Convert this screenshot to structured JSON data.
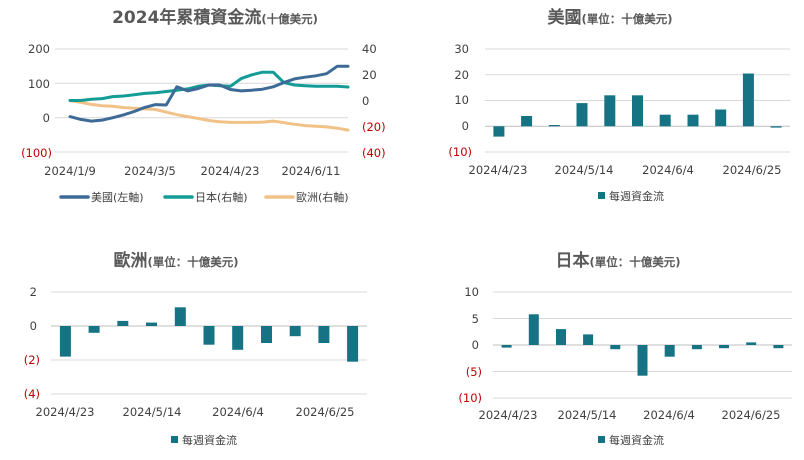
{
  "colors": {
    "us": "#3d6a96",
    "japan": "#139c95",
    "europe": "#f0c287",
    "bar": "#157384",
    "negative_tick": "#c00000",
    "grid": "#d9d9d9"
  },
  "chart_data": [
    {
      "id": "cumulative",
      "type": "line",
      "title": "2024年累積資金流",
      "title_suffix": "(十億美元)",
      "x_tick_labels": [
        "2024/1/9",
        "2024/3/5",
        "2024/4/23",
        "2024/6/11"
      ],
      "left_axis": {
        "ylim": [
          -100,
          200
        ],
        "tick_labels": [
          "200",
          "100",
          "0",
          "(100)"
        ]
      },
      "right_axis": {
        "ylim": [
          -40,
          40
        ],
        "tick_labels": [
          "40",
          "20",
          "0",
          "(20)",
          "(40)"
        ]
      },
      "grid": true,
      "legend_position": "bottom",
      "series": [
        {
          "name": "美國(左軸)",
          "axis": "left",
          "color_key": "us",
          "values": [
            3,
            -5,
            -10,
            -7,
            0,
            8,
            18,
            30,
            38,
            37,
            90,
            78,
            85,
            95,
            95,
            82,
            78,
            80,
            83,
            90,
            102,
            113,
            118,
            122,
            128,
            150,
            150
          ]
        },
        {
          "name": "日本(右軸)",
          "axis": "right",
          "color_key": "japan",
          "values": [
            0,
            0,
            1,
            1.5,
            3,
            3.5,
            4.5,
            5.5,
            6,
            7,
            8,
            9,
            11,
            12,
            11.5,
            11,
            17,
            20,
            22,
            22,
            14,
            12,
            11.5,
            11,
            11,
            11,
            10.5
          ]
        },
        {
          "name": "歐洲(右軸)",
          "axis": "right",
          "color_key": "europe",
          "values": [
            0,
            -1.5,
            -3,
            -4,
            -4.5,
            -5.5,
            -6,
            -6.5,
            -7,
            -9,
            -11,
            -12.5,
            -14,
            -15.5,
            -16.5,
            -17,
            -17,
            -17,
            -16.8,
            -16,
            -17.2,
            -18.5,
            -19.5,
            -20,
            -20.5,
            -21.5,
            -23
          ]
        }
      ]
    },
    {
      "id": "us",
      "type": "bar",
      "title": "美國",
      "title_suffix": "(單位：十億美元)",
      "x_tick_labels": [
        "2024/4/23",
        "2024/5/14",
        "2024/6/4",
        "2024/6/25"
      ],
      "ylim": [
        -10,
        30
      ],
      "tick_labels": [
        "30",
        "20",
        "10",
        "0",
        "(10)"
      ],
      "legend": "每週資金流",
      "values": [
        -4,
        4,
        0.5,
        9,
        12,
        12,
        4.5,
        4.5,
        6.5,
        20.5,
        -0.5
      ]
    },
    {
      "id": "europe",
      "type": "bar",
      "title": "歐洲",
      "title_suffix": "(單位：十億美元)",
      "x_tick_labels": [
        "2024/4/23",
        "2024/5/14",
        "2024/6/4",
        "2024/6/25"
      ],
      "ylim": [
        -4,
        2
      ],
      "tick_labels": [
        "2",
        "0",
        "(2)",
        "(4)"
      ],
      "legend": "每週資金流",
      "values": [
        -1.8,
        -0.4,
        0.3,
        0.2,
        1.1,
        -1.1,
        -1.4,
        -1.0,
        -0.6,
        -1.0,
        -2.1
      ]
    },
    {
      "id": "japan",
      "type": "bar",
      "title": "日本",
      "title_suffix": "(單位：十億美元)",
      "x_tick_labels": [
        "2024/4/23",
        "2024/5/14",
        "2024/6/4",
        "2024/6/25"
      ],
      "ylim": [
        -10,
        10
      ],
      "tick_labels": [
        "10",
        "5",
        "0",
        "(5)",
        "(10)"
      ],
      "legend": "每週資金流",
      "values": [
        -0.5,
        5.8,
        3.0,
        2.0,
        -0.8,
        -5.8,
        -2.2,
        -0.8,
        -0.6,
        0.5,
        -0.6
      ]
    }
  ]
}
